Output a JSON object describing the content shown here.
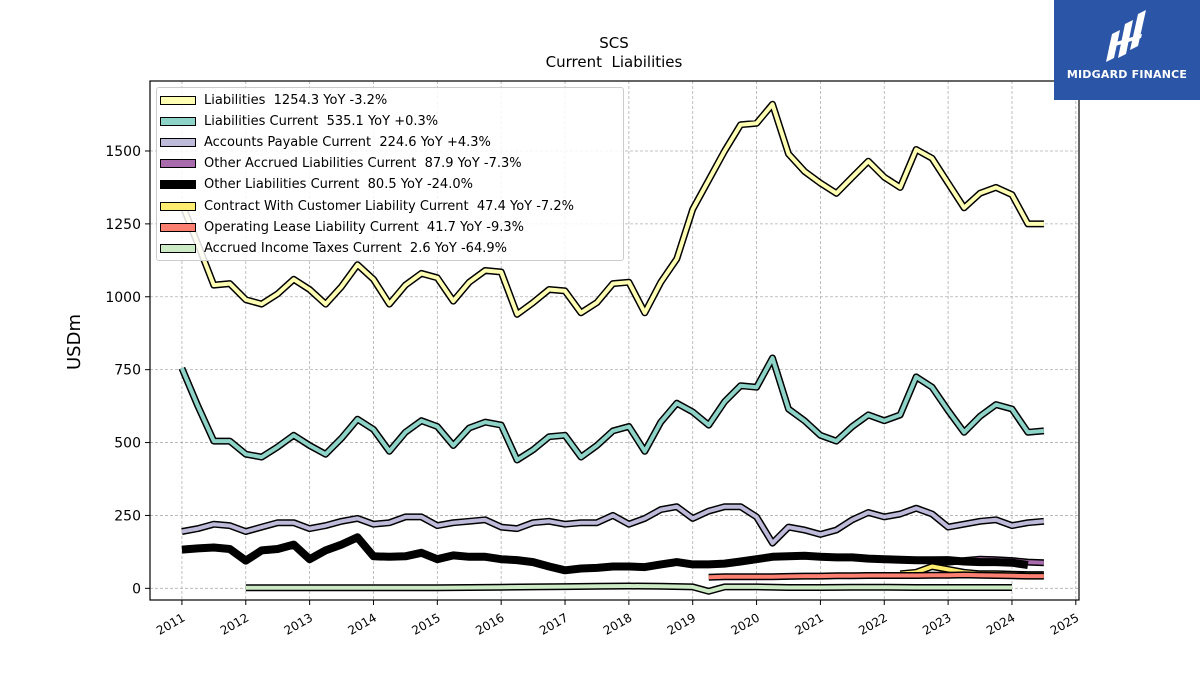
{
  "brand": {
    "name": "MIDGARD FINANCE",
    "bg_color": "#2b56a8"
  },
  "chart_data": {
    "type": "line",
    "title": "SCS",
    "subtitle": "Current  Liabilities",
    "ylabel": "USDm",
    "xlabel": "",
    "xlim": [
      2010.5,
      2025.05
    ],
    "ylim": [
      -40,
      1740
    ],
    "x_ticks": [
      "2011",
      "2012",
      "2013",
      "2014",
      "2015",
      "2016",
      "2017",
      "2018",
      "2019",
      "2020",
      "2021",
      "2022",
      "2023",
      "2024",
      "2025"
    ],
    "y_ticks": [
      "0",
      "250",
      "500",
      "750",
      "1000",
      "1250",
      "1500"
    ],
    "grid": true,
    "legend_position": "top-left",
    "series": [
      {
        "name": "Liabilities  1254.3 YoY -3.2%",
        "color": "#ffffb3",
        "thick": false,
        "x": [
          2011.0,
          2011.25,
          2011.5,
          2011.75,
          2012.0,
          2012.25,
          2012.5,
          2012.75,
          2013.0,
          2013.25,
          2013.5,
          2013.75,
          2014.0,
          2014.25,
          2014.5,
          2014.75,
          2015.0,
          2015.25,
          2015.5,
          2015.75,
          2016.0,
          2016.25,
          2016.5,
          2016.75,
          2017.0,
          2017.25,
          2017.5,
          2017.75,
          2018.0,
          2018.25,
          2018.5,
          2018.75,
          2019.0,
          2019.25,
          2019.5,
          2019.75,
          2020.0,
          2020.25,
          2020.5,
          2020.75,
          2021.0,
          2021.25,
          2021.5,
          2021.75,
          2022.0,
          2022.25,
          2022.5,
          2022.75,
          2023.0,
          2023.25,
          2023.5,
          2023.75,
          2024.0,
          2024.25,
          2024.5
        ],
        "values": [
          1320,
          1180,
          1040,
          1045,
          990,
          975,
          1010,
          1060,
          1025,
          975,
          1035,
          1110,
          1060,
          975,
          1040,
          1080,
          1065,
          985,
          1050,
          1090,
          1085,
          940,
          980,
          1025,
          1020,
          945,
          980,
          1045,
          1050,
          945,
          1050,
          1130,
          1300,
          1400,
          1500,
          1590,
          1595,
          1660,
          1490,
          1430,
          1390,
          1355,
          1410,
          1465,
          1410,
          1375,
          1505,
          1475,
          1390,
          1305,
          1355,
          1375,
          1350,
          1250,
          1250
        ]
      },
      {
        "name": "Liabilities Current  535.1 YoY +0.3%",
        "color": "#8dd3c7",
        "thick": false,
        "x": [
          2011.0,
          2011.25,
          2011.5,
          2011.75,
          2012.0,
          2012.25,
          2012.5,
          2012.75,
          2013.0,
          2013.25,
          2013.5,
          2013.75,
          2014.0,
          2014.25,
          2014.5,
          2014.75,
          2015.0,
          2015.25,
          2015.5,
          2015.75,
          2016.0,
          2016.25,
          2016.5,
          2016.75,
          2017.0,
          2017.25,
          2017.5,
          2017.75,
          2018.0,
          2018.25,
          2018.5,
          2018.75,
          2019.0,
          2019.25,
          2019.5,
          2019.75,
          2020.0,
          2020.25,
          2020.5,
          2020.75,
          2021.0,
          2021.25,
          2021.5,
          2021.75,
          2022.0,
          2022.25,
          2022.5,
          2022.75,
          2023.0,
          2023.25,
          2023.5,
          2023.75,
          2024.0,
          2024.25,
          2024.5
        ],
        "values": [
          755,
          625,
          505,
          505,
          460,
          450,
          485,
          525,
          490,
          460,
          515,
          580,
          545,
          470,
          535,
          575,
          555,
          490,
          550,
          570,
          560,
          440,
          475,
          520,
          525,
          450,
          490,
          540,
          555,
          470,
          570,
          635,
          605,
          560,
          640,
          695,
          690,
          790,
          615,
          575,
          525,
          505,
          555,
          595,
          575,
          595,
          725,
          690,
          610,
          535,
          590,
          630,
          615,
          535,
          540
        ]
      },
      {
        "name": "Accounts Payable Current  224.6 YoY +4.3%",
        "color": "#bebada",
        "thick": false,
        "x": [
          2011.0,
          2011.25,
          2011.5,
          2011.75,
          2012.0,
          2012.25,
          2012.5,
          2012.75,
          2013.0,
          2013.25,
          2013.5,
          2013.75,
          2014.0,
          2014.25,
          2014.5,
          2014.75,
          2015.0,
          2015.25,
          2015.5,
          2015.75,
          2016.0,
          2016.25,
          2016.5,
          2016.75,
          2017.0,
          2017.25,
          2017.5,
          2017.75,
          2018.0,
          2018.25,
          2018.5,
          2018.75,
          2019.0,
          2019.25,
          2019.5,
          2019.75,
          2020.0,
          2020.25,
          2020.5,
          2020.75,
          2021.0,
          2021.25,
          2021.5,
          2021.75,
          2022.0,
          2022.25,
          2022.5,
          2022.75,
          2023.0,
          2023.25,
          2023.5,
          2023.75,
          2024.0,
          2024.25,
          2024.5
        ],
        "values": [
          195,
          205,
          220,
          215,
          195,
          210,
          225,
          225,
          205,
          215,
          230,
          240,
          220,
          225,
          245,
          245,
          215,
          225,
          230,
          235,
          210,
          205,
          225,
          230,
          220,
          225,
          225,
          250,
          220,
          240,
          270,
          280,
          240,
          265,
          280,
          280,
          245,
          155,
          210,
          200,
          185,
          200,
          235,
          260,
          245,
          255,
          275,
          255,
          210,
          220,
          230,
          235,
          215,
          225,
          230
        ]
      },
      {
        "name": "Other Accrued Liabilities Current  87.9 YoY -7.3%",
        "color": "#a86cad",
        "thick": false,
        "x": [
          2022.75,
          2023.0,
          2023.25,
          2023.5,
          2023.75,
          2024.0,
          2024.25,
          2024.5
        ],
        "values": [
          95,
          90,
          95,
          100,
          98,
          95,
          90,
          88
        ]
      },
      {
        "name": "Other Liabilities Current  80.5 YoY -24.0%",
        "color": "#000000",
        "thick": true,
        "x": [
          2011.0,
          2011.25,
          2011.5,
          2011.75,
          2012.0,
          2012.25,
          2012.5,
          2012.75,
          2013.0,
          2013.25,
          2013.5,
          2013.75,
          2014.0,
          2014.25,
          2014.5,
          2014.75,
          2015.0,
          2015.25,
          2015.5,
          2015.75,
          2016.0,
          2016.25,
          2016.5,
          2016.75,
          2017.0,
          2017.25,
          2017.5,
          2017.75,
          2018.0,
          2018.25,
          2018.5,
          2018.75,
          2019.0,
          2019.25,
          2019.5,
          2019.75,
          2020.0,
          2020.25,
          2020.5,
          2020.75,
          2021.0,
          2021.25,
          2021.5,
          2021.75,
          2022.0,
          2022.25,
          2022.5,
          2022.75,
          2023.0,
          2023.25,
          2023.5,
          2023.75,
          2024.0,
          2024.25
        ],
        "values": [
          133,
          137,
          140,
          135,
          95,
          130,
          135,
          150,
          100,
          130,
          150,
          175,
          110,
          108,
          110,
          122,
          100,
          113,
          108,
          108,
          100,
          97,
          90,
          75,
          62,
          68,
          70,
          75,
          75,
          73,
          82,
          90,
          82,
          82,
          85,
          92,
          100,
          108,
          110,
          112,
          108,
          106,
          106,
          102,
          100,
          98,
          96,
          96,
          97,
          92,
          90,
          90,
          88,
          80
        ]
      },
      {
        "name": "Contract With Customer Liability Current  47.4 YoY -7.2%",
        "color": "#ffed6f",
        "thick": false,
        "x": [
          2022.25,
          2022.5,
          2022.75,
          2023.0,
          2023.25,
          2023.5,
          2023.75,
          2024.0,
          2024.25,
          2024.5
        ],
        "values": [
          50,
          55,
          75,
          65,
          55,
          50,
          50,
          48,
          47,
          47
        ]
      },
      {
        "name": "Operating Lease Liability Current  41.7 YoY -9.3%",
        "color": "#fb8072",
        "thick": false,
        "x": [
          2019.25,
          2019.5,
          2019.75,
          2020.0,
          2020.25,
          2020.5,
          2020.75,
          2021.0,
          2021.25,
          2021.5,
          2021.75,
          2022.0,
          2022.25,
          2022.5,
          2022.75,
          2023.0,
          2023.25,
          2023.5,
          2023.75,
          2024.0,
          2024.25,
          2024.5
        ],
        "values": [
          38,
          40,
          40,
          40,
          40,
          41,
          42,
          42,
          43,
          43,
          44,
          44,
          44,
          44,
          45,
          45,
          46,
          45,
          44,
          43,
          42,
          42
        ]
      },
      {
        "name": "Accrued Income Taxes Current  2.6 YoY -64.9%",
        "color": "#ccebc5",
        "thick": false,
        "x": [
          2012.0,
          2012.5,
          2013.0,
          2013.5,
          2014.0,
          2014.5,
          2015.0,
          2015.5,
          2016.0,
          2016.5,
          2017.0,
          2017.5,
          2018.0,
          2018.5,
          2019.0,
          2019.25,
          2019.5,
          2020.0,
          2020.5,
          2021.0,
          2021.5,
          2022.0,
          2022.5,
          2023.0,
          2023.5,
          2024.0
        ],
        "values": [
          2,
          2,
          2,
          2,
          2,
          2,
          2,
          3,
          4,
          5,
          6,
          7,
          8,
          7,
          5,
          -10,
          5,
          5,
          3,
          3,
          4,
          4,
          3,
          3,
          3,
          3
        ]
      }
    ]
  }
}
